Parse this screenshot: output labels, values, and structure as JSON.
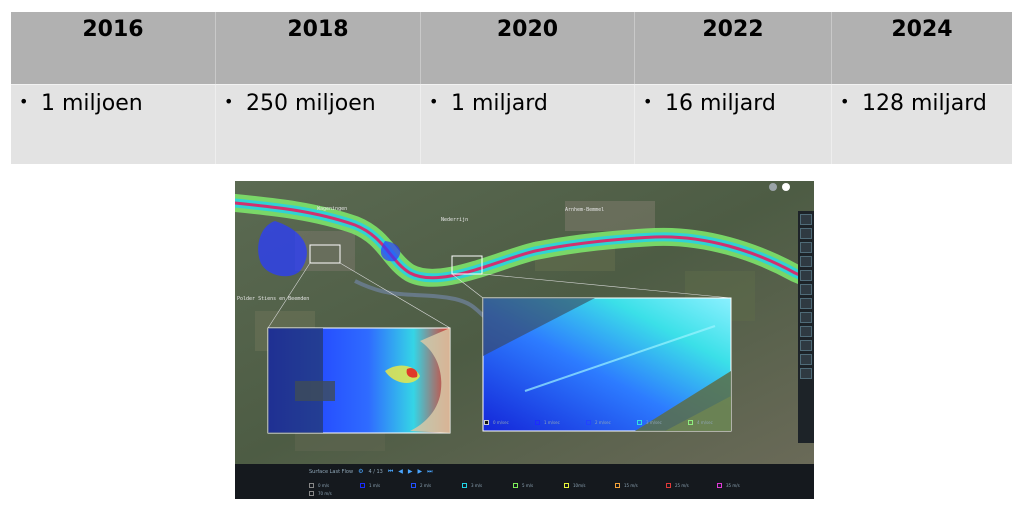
{
  "table": {
    "columns": [
      {
        "year": "2016",
        "value": "1 miljoen"
      },
      {
        "year": "2018",
        "value": "250 miljoen"
      },
      {
        "year": "2020",
        "value": "1 miljard"
      },
      {
        "year": "2022",
        "value": "16 miljard"
      },
      {
        "year": "2024",
        "value": "128 miljard"
      }
    ],
    "bullet": "•"
  },
  "map": {
    "labels": {
      "city_1": "Wageningen",
      "city_2": "Nederrijn",
      "city_3": "Arnhem-Bemmel",
      "polder": "Polder Stiens en Beemden"
    },
    "colors": {
      "water_blue": "#2a3cff",
      "water_cyan": "#27d3e0",
      "water_green": "#7de36a",
      "channel_pink": "#d0306f"
    }
  },
  "inset_legend": [
    {
      "label": "0 m/sec",
      "color": "#111111"
    },
    {
      "label": "1 m/sec",
      "color": "#1c2bff"
    },
    {
      "label": "2 m/sec",
      "color": "#2143ff"
    },
    {
      "label": "3 m/sec",
      "color": "#34e0e0"
    },
    {
      "label": "4 m/sec",
      "color": "#90ee80"
    }
  ],
  "playback": {
    "layer_label": "Surface Last Flow",
    "frame": "4 / 13"
  },
  "legend": [
    {
      "label": "0 m/s",
      "color": "#222222"
    },
    {
      "label": "1 m/s",
      "color": "#1a2cff"
    },
    {
      "label": "2 m/s",
      "color": "#2351ff"
    },
    {
      "label": "3 m/s",
      "color": "#20d4e6"
    },
    {
      "label": "5 m/s",
      "color": "#7ef05a"
    },
    {
      "label": "10m/s",
      "color": "#e8f53a"
    },
    {
      "label": "15 m/s",
      "color": "#f3a23a"
    },
    {
      "label": "25 m/s",
      "color": "#e03a3a"
    },
    {
      "label": "35 m/s",
      "color": "#e03ad9"
    }
  ],
  "legend_extra": {
    "label": "70 m/s",
    "color": "#111111"
  }
}
